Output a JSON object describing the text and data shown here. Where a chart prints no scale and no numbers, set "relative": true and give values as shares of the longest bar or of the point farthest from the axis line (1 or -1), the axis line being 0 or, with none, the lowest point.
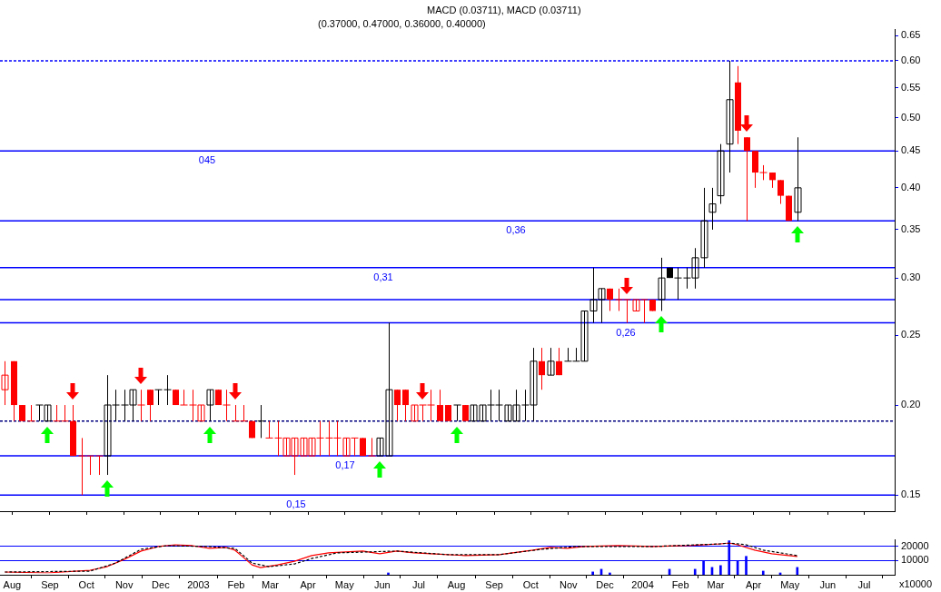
{
  "chart_data": [
    {
      "type": "candlestick",
      "annotations": [
        "MACD (0.03711), MACD (0.03711)",
        "(0.37000, 0.47000, 0.36000, 0.40000)"
      ],
      "x": [
        "2002-07-26",
        "2002-08-02",
        "2002-08-09",
        "2002-08-16",
        "2002-08-23",
        "2002-08-30",
        "2002-09-06",
        "2002-09-13",
        "2002-09-20",
        "2002-09-27",
        "2002-10-04",
        "2002-10-11",
        "2002-10-18",
        "2002-10-25",
        "2002-11-01",
        "2002-11-08",
        "2002-11-15",
        "2002-11-22",
        "2002-11-29",
        "2002-12-06",
        "2002-12-13",
        "2002-12-20",
        "2002-12-27",
        "2003-01-03",
        "2003-01-10",
        "2003-01-17",
        "2003-01-24",
        "2003-01-31",
        "2003-02-07",
        "2003-02-14",
        "2003-02-21",
        "2003-02-28",
        "2003-03-07",
        "2003-03-14",
        "2003-03-21",
        "2003-03-28",
        "2003-04-04",
        "2003-04-11",
        "2003-04-18",
        "2003-04-25",
        "2003-05-02",
        "2003-05-09",
        "2003-05-16",
        "2003-05-23",
        "2003-05-30",
        "2003-06-06",
        "2003-06-13",
        "2003-06-20",
        "2003-06-27",
        "2003-07-04",
        "2003-07-11",
        "2003-07-18",
        "2003-07-25",
        "2003-08-01",
        "2003-08-08",
        "2003-08-15",
        "2003-08-22",
        "2003-08-29",
        "2003-09-05",
        "2003-09-12",
        "2003-09-19",
        "2003-09-26",
        "2003-10-03",
        "2003-10-10",
        "2003-10-17",
        "2003-10-24",
        "2003-10-31",
        "2003-11-07",
        "2003-11-14",
        "2003-11-21",
        "2003-11-28",
        "2003-12-05",
        "2003-12-12",
        "2003-12-19",
        "2003-12-26",
        "2004-01-02",
        "2004-01-09",
        "2004-01-16",
        "2004-01-23",
        "2004-01-30",
        "2004-02-06",
        "2004-02-13",
        "2004-02-20",
        "2004-02-27",
        "2004-03-05",
        "2004-03-12",
        "2004-03-19",
        "2004-03-26",
        "2004-04-02",
        "2004-04-09",
        "2004-04-16",
        "2004-04-23",
        "2004-04-30",
        "2004-05-07"
      ],
      "ohlc": [
        [
          0.21,
          0.23,
          0.2,
          0.22
        ],
        [
          0.23,
          0.23,
          0.19,
          0.2
        ],
        [
          0.2,
          0.2,
          0.19,
          0.19
        ],
        [
          0.19,
          0.2,
          0.19,
          0.19
        ],
        [
          0.2,
          0.2,
          0.19,
          0.2
        ],
        [
          0.19,
          0.2,
          0.19,
          0.2
        ],
        [
          0.19,
          0.2,
          0.19,
          0.19
        ],
        [
          0.19,
          0.2,
          0.19,
          0.19
        ],
        [
          0.19,
          0.2,
          0.17,
          0.17
        ],
        [
          0.17,
          0.18,
          0.15,
          0.17
        ],
        [
          0.17,
          0.17,
          0.16,
          0.17
        ],
        [
          0.17,
          0.17,
          0.16,
          0.17
        ],
        [
          0.17,
          0.22,
          0.16,
          0.2
        ],
        [
          0.2,
          0.21,
          0.19,
          0.2
        ],
        [
          0.2,
          0.21,
          0.19,
          0.2
        ],
        [
          0.2,
          0.21,
          0.19,
          0.21
        ],
        [
          0.2,
          0.21,
          0.19,
          0.2
        ],
        [
          0.21,
          0.21,
          0.19,
          0.2
        ],
        [
          0.21,
          0.21,
          0.2,
          0.21
        ],
        [
          0.21,
          0.22,
          0.2,
          0.21
        ],
        [
          0.21,
          0.21,
          0.2,
          0.2
        ],
        [
          0.2,
          0.21,
          0.2,
          0.2
        ],
        [
          0.2,
          0.21,
          0.19,
          0.2
        ],
        [
          0.19,
          0.2,
          0.19,
          0.2
        ],
        [
          0.2,
          0.21,
          0.19,
          0.21
        ],
        [
          0.21,
          0.21,
          0.2,
          0.2
        ],
        [
          0.2,
          0.21,
          0.19,
          0.2
        ],
        [
          0.19,
          0.2,
          0.19,
          0.19
        ],
        [
          0.19,
          0.2,
          0.19,
          0.19
        ],
        [
          0.19,
          0.19,
          0.18,
          0.18
        ],
        [
          0.19,
          0.2,
          0.18,
          0.19
        ],
        [
          0.18,
          0.19,
          0.18,
          0.18
        ],
        [
          0.18,
          0.19,
          0.17,
          0.18
        ],
        [
          0.17,
          0.18,
          0.17,
          0.18
        ],
        [
          0.17,
          0.18,
          0.16,
          0.18
        ],
        [
          0.17,
          0.18,
          0.17,
          0.18
        ],
        [
          0.17,
          0.18,
          0.17,
          0.18
        ],
        [
          0.18,
          0.19,
          0.17,
          0.18
        ],
        [
          0.18,
          0.19,
          0.17,
          0.18
        ],
        [
          0.18,
          0.19,
          0.17,
          0.18
        ],
        [
          0.17,
          0.18,
          0.17,
          0.18
        ],
        [
          0.18,
          0.18,
          0.17,
          0.18
        ],
        [
          0.18,
          0.18,
          0.17,
          0.17
        ],
        [
          0.17,
          0.18,
          0.17,
          0.17
        ],
        [
          0.17,
          0.18,
          0.17,
          0.18
        ],
        [
          0.17,
          0.26,
          0.17,
          0.21
        ],
        [
          0.21,
          0.21,
          0.19,
          0.2
        ],
        [
          0.21,
          0.21,
          0.19,
          0.2
        ],
        [
          0.19,
          0.2,
          0.19,
          0.2
        ],
        [
          0.2,
          0.2,
          0.19,
          0.2
        ],
        [
          0.2,
          0.21,
          0.19,
          0.2
        ],
        [
          0.2,
          0.21,
          0.19,
          0.19
        ],
        [
          0.2,
          0.2,
          0.19,
          0.19
        ],
        [
          0.2,
          0.2,
          0.19,
          0.2
        ],
        [
          0.2,
          0.2,
          0.19,
          0.19
        ],
        [
          0.19,
          0.2,
          0.19,
          0.2
        ],
        [
          0.19,
          0.2,
          0.19,
          0.2
        ],
        [
          0.2,
          0.21,
          0.19,
          0.2
        ],
        [
          0.2,
          0.21,
          0.19,
          0.2
        ],
        [
          0.19,
          0.2,
          0.19,
          0.2
        ],
        [
          0.19,
          0.21,
          0.19,
          0.2
        ],
        [
          0.2,
          0.21,
          0.19,
          0.2
        ],
        [
          0.2,
          0.24,
          0.19,
          0.23
        ],
        [
          0.23,
          0.24,
          0.21,
          0.22
        ],
        [
          0.22,
          0.24,
          0.22,
          0.23
        ],
        [
          0.23,
          0.24,
          0.22,
          0.22
        ],
        [
          0.23,
          0.24,
          0.23,
          0.23
        ],
        [
          0.23,
          0.24,
          0.23,
          0.23
        ],
        [
          0.23,
          0.27,
          0.23,
          0.27
        ],
        [
          0.27,
          0.31,
          0.26,
          0.28
        ],
        [
          0.28,
          0.29,
          0.26,
          0.29
        ],
        [
          0.29,
          0.29,
          0.27,
          0.28
        ],
        [
          0.28,
          0.29,
          0.27,
          0.28
        ],
        [
          0.28,
          0.28,
          0.26,
          0.28
        ],
        [
          0.27,
          0.28,
          0.27,
          0.28
        ],
        [
          0.28,
          0.28,
          0.26,
          0.28
        ],
        [
          0.28,
          0.28,
          0.27,
          0.27
        ],
        [
          0.28,
          0.32,
          0.27,
          0.3
        ],
        [
          0.31,
          0.31,
          0.3,
          0.3
        ],
        [
          0.3,
          0.31,
          0.28,
          0.3
        ],
        [
          0.3,
          0.31,
          0.29,
          0.3
        ],
        [
          0.3,
          0.33,
          0.29,
          0.32
        ],
        [
          0.32,
          0.4,
          0.31,
          0.36
        ],
        [
          0.37,
          0.4,
          0.35,
          0.38
        ],
        [
          0.39,
          0.46,
          0.38,
          0.45
        ],
        [
          0.46,
          0.6,
          0.42,
          0.53
        ],
        [
          0.56,
          0.59,
          0.46,
          0.48
        ],
        [
          0.47,
          0.47,
          0.36,
          0.45
        ],
        [
          0.45,
          0.45,
          0.4,
          0.42
        ],
        [
          0.42,
          0.43,
          0.41,
          0.42
        ],
        [
          0.42,
          0.42,
          0.4,
          0.41
        ],
        [
          0.41,
          0.41,
          0.38,
          0.39
        ],
        [
          0.39,
          0.39,
          0.36,
          0.36
        ],
        [
          0.37,
          0.47,
          0.36,
          0.4
        ]
      ],
      "colors": [
        "#ff0000",
        "#ff0000",
        "#ff0000",
        "#ff0000",
        "#000000",
        "#000000",
        "#ff0000",
        "#ff0000",
        "#ff0000",
        "#ff0000",
        "#ff0000",
        "#ff0000",
        "#000000",
        "#000000",
        "#000000",
        "#000000",
        "#ff0000",
        "#ff0000",
        "#000000",
        "#000000",
        "#ff0000",
        "#ff0000",
        "#ff0000",
        "#ff0000",
        "#000000",
        "#ff0000",
        "#ff0000",
        "#ff0000",
        "#ff0000",
        "#ff0000",
        "#000000",
        "#ff0000",
        "#ff0000",
        "#ff0000",
        "#ff0000",
        "#ff0000",
        "#ff0000",
        "#ff0000",
        "#ff0000",
        "#ff0000",
        "#ff0000",
        "#ff0000",
        "#ff0000",
        "#ff0000",
        "#000000",
        "#000000",
        "#ff0000",
        "#ff0000",
        "#ff0000",
        "#ff0000",
        "#ff0000",
        "#ff0000",
        "#ff0000",
        "#000000",
        "#ff0000",
        "#000000",
        "#000000",
        "#000000",
        "#000000",
        "#000000",
        "#000000",
        "#000000",
        "#000000",
        "#ff0000",
        "#000000",
        "#ff0000",
        "#000000",
        "#000000",
        "#000000",
        "#000000",
        "#000000",
        "#ff0000",
        "#ff0000",
        "#ff0000",
        "#ff0000",
        "#ff0000",
        "#ff0000",
        "#000000",
        "#000000",
        "#000000",
        "#000000",
        "#000000",
        "#000000",
        "#000000",
        "#000000",
        "#000000",
        "#ff0000",
        "#ff0000",
        "#ff0000",
        "#ff0000",
        "#ff0000",
        "#ff0000",
        "#ff0000",
        "#000000"
      ],
      "xlim": [
        "2002-07-22",
        "2004-07-26"
      ],
      "xticks": [
        {
          "value": "2002-08-01",
          "label": null
        },
        {
          "value": "2002-09-01",
          "label": null
        },
        {
          "value": "2002-10-01",
          "label": null
        },
        {
          "value": "2002-11-01",
          "label": null
        },
        {
          "value": "2002-12-01",
          "label": null
        },
        {
          "value": "2003-01-01",
          "label": null
        },
        {
          "value": "2003-02-01",
          "label": null
        },
        {
          "value": "2003-03-01",
          "label": null
        },
        {
          "value": "2003-04-01",
          "label": null
        },
        {
          "value": "2003-05-01",
          "label": null
        },
        {
          "value": "2003-06-01",
          "label": null
        },
        {
          "value": "2003-07-01",
          "label": null
        },
        {
          "value": "2003-08-01",
          "label": null
        },
        {
          "value": "2003-09-01",
          "label": null
        },
        {
          "value": "2003-10-01",
          "label": null
        },
        {
          "value": "2003-11-01",
          "label": null
        },
        {
          "value": "2003-12-01",
          "label": null
        },
        {
          "value": "2004-01-01",
          "label": null
        },
        {
          "value": "2004-02-01",
          "label": null
        },
        {
          "value": "2004-03-01",
          "label": null
        },
        {
          "value": "2004-04-01",
          "label": null
        },
        {
          "value": "2004-05-01",
          "label": null
        },
        {
          "value": "2004-06-01",
          "label": null
        },
        {
          "value": "2004-07-01",
          "label": null
        }
      ],
      "ylim": [
        0.1425,
        0.664
      ],
      "log": true,
      "yticks": [
        0.15,
        {
          "value": 0.2,
          "label": "0.20"
        },
        0.25,
        {
          "value": 0.3,
          "label": "0.30"
        },
        0.35,
        {
          "value": 0.4,
          "label": "0.40"
        },
        0.45,
        {
          "value": 0.5,
          "label": "0.50"
        },
        0.55,
        {
          "value": 0.6,
          "label": "0.60"
        },
        0.65
      ],
      "tick_labels": "y",
      "ref_lines": [
        {
          "axis": "y",
          "value": 0.6,
          "color": "#0000ff",
          "line_style": "dashed"
        },
        {
          "axis": "y",
          "value": 0.45,
          "label": "045",
          "color": "#0000ff"
        },
        {
          "axis": "y",
          "value": 0.36,
          "label": "0,36",
          "color": "#0000ff"
        },
        {
          "axis": "y",
          "value": 0.31,
          "label": "0,31",
          "color": "#0000ff"
        },
        {
          "axis": "y",
          "value": 0.28,
          "color": "#0000ff"
        },
        {
          "axis": "y",
          "value": 0.26,
          "label": "0,26",
          "color": "#0000ff"
        },
        {
          "axis": "y",
          "value": 0.19,
          "color": "#000080",
          "line_style": "dashed"
        },
        {
          "axis": "y",
          "value": 0.17,
          "label": "0,17",
          "color": "#0000ff"
        },
        {
          "axis": "y",
          "value": 0.15,
          "label": "0,15",
          "color": "#0000ff"
        }
      ]
    },
    {
      "type": "bar",
      "annotations": [
        "x10000"
      ],
      "color": "#0000ff",
      "x": [
        "2003-06-06",
        "2003-11-21",
        "2003-11-28",
        "2003-12-05",
        "2004-01-23",
        "2004-02-13",
        "2004-02-20",
        "2004-02-27",
        "2004-03-05",
        "2004-03-12",
        "2004-03-19",
        "2004-03-26",
        "2004-04-09",
        "2004-04-23",
        "2004-05-07"
      ],
      "values": [
        1300,
        2000,
        3900,
        1300,
        3900,
        3900,
        9700,
        5200,
        6500,
        24000,
        9700,
        13000,
        2600,
        1300,
        5200
      ],
      "xlim": [
        "2002-07-22",
        "2004-07-26"
      ],
      "xticks": [
        {
          "value": "2002-08-01",
          "label": "Aug"
        },
        {
          "value": "2002-09-01",
          "label": "Sep"
        },
        {
          "value": "2002-10-01",
          "label": "Oct"
        },
        {
          "value": "2002-11-01",
          "label": "Nov"
        },
        {
          "value": "2002-12-01",
          "label": "Dec"
        },
        {
          "value": "2003-01-01",
          "label": "2003"
        },
        {
          "value": "2003-02-01",
          "label": "Feb"
        },
        {
          "value": "2003-03-01",
          "label": "Mar"
        },
        {
          "value": "2003-04-01",
          "label": "Apr"
        },
        {
          "value": "2003-05-01",
          "label": "May"
        },
        {
          "value": "2003-06-01",
          "label": "Jun"
        },
        {
          "value": "2003-07-01",
          "label": "Jul"
        },
        {
          "value": "2003-08-01",
          "label": "Aug"
        },
        {
          "value": "2003-09-01",
          "label": "Sep"
        },
        {
          "value": "2003-10-01",
          "label": "Oct"
        },
        {
          "value": "2003-11-01",
          "label": "Nov"
        },
        {
          "value": "2003-12-01",
          "label": "Dec"
        },
        {
          "value": "2004-01-01",
          "label": "2004"
        },
        {
          "value": "2004-02-01",
          "label": "Feb"
        },
        {
          "value": "2004-03-01",
          "label": "Mar"
        },
        {
          "value": "2004-04-01",
          "label": "Apr"
        },
        {
          "value": "2004-05-01",
          "label": "May"
        },
        {
          "value": "2004-06-01",
          "label": "Jun"
        },
        {
          "value": "2004-07-01",
          "label": "Jul"
        }
      ],
      "ylim": [
        0,
        25000
      ],
      "yticks": [
        10000,
        20000
      ],
      "grid": "y"
    },
    {
      "type": "line",
      "relative": true,
      "tick_labels": false,
      "xlim": [
        "2002-07-22",
        "2004-07-26"
      ],
      "series": [
        {
          "color": "#ff0000",
          "x": [
            "2002-07-26",
            "2002-08-30",
            "2002-10-04",
            "2002-10-18",
            "2002-11-01",
            "2002-11-15",
            "2002-11-29",
            "2002-12-13",
            "2002-12-27",
            "2003-01-10",
            "2003-01-24",
            "2003-01-31",
            "2003-02-07",
            "2003-02-14",
            "2003-02-21",
            "2003-03-07",
            "2003-03-21",
            "2003-04-04",
            "2003-04-18",
            "2003-05-16",
            "2003-05-30",
            "2003-06-13",
            "2003-06-27",
            "2003-07-11",
            "2003-08-08",
            "2003-09-05",
            "2003-10-03",
            "2003-10-17",
            "2003-10-31",
            "2003-11-14",
            "2003-12-12",
            "2004-01-09",
            "2004-02-06",
            "2004-03-05",
            "2004-03-12",
            "2004-03-19",
            "2004-04-02",
            "2004-04-16",
            "2004-05-07"
          ],
          "values": [
            0.03,
            0,
            0.09,
            0.21,
            0.45,
            0.73,
            0.88,
            0.94,
            0.91,
            0.82,
            0.85,
            0.76,
            0.52,
            0.27,
            0.18,
            0.27,
            0.39,
            0.58,
            0.67,
            0.73,
            0.64,
            0.73,
            0.67,
            0.64,
            0.58,
            0.61,
            0.76,
            0.85,
            0.82,
            0.88,
            0.91,
            0.88,
            0.91,
            0.97,
            1,
            0.94,
            0.76,
            0.64,
            0.55
          ]
        },
        {
          "color": "#000000",
          "line_style": "dashed",
          "x": [
            "2002-07-26",
            "2002-10-04",
            "2002-10-25",
            "2002-11-15",
            "2002-12-06",
            "2003-01-10",
            "2003-01-31",
            "2003-02-07",
            "2003-02-14",
            "2003-02-28",
            "2003-03-21",
            "2003-04-04",
            "2003-04-25",
            "2003-06-13",
            "2003-07-25",
            "2003-09-05",
            "2003-10-10",
            "2003-11-07",
            "2004-01-09",
            "2004-03-05",
            "2004-03-12",
            "2004-03-26",
            "2004-04-09",
            "2004-05-07"
          ],
          "values": [
            0.03,
            0.06,
            0.33,
            0.79,
            0.91,
            0.88,
            0.82,
            0.58,
            0.33,
            0.21,
            0.3,
            0.48,
            0.67,
            0.73,
            0.61,
            0.61,
            0.79,
            0.88,
            0.88,
            0.97,
            1,
            0.94,
            0.76,
            0.58
          ]
        }
      ]
    }
  ]
}
